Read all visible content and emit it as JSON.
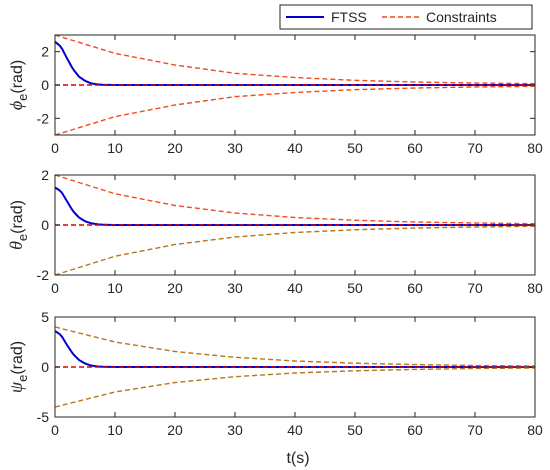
{
  "colors": {
    "ftss": "#0000cc",
    "constraints_red": "#f04c20",
    "constraints_brown": "#b5761e",
    "reference": "#e00000",
    "axes": "#262626"
  },
  "legend": {
    "placement": "top-right",
    "entries": [
      "FTSS",
      "Constraints"
    ]
  },
  "xlabel": "t(s)",
  "chart_data": [
    {
      "type": "line",
      "ylabel_symbol": "ϕ",
      "ylabel_subscript": "e",
      "ylabel_unit": "(rad)",
      "xlim": [
        0,
        80
      ],
      "ylim": [
        -3,
        3
      ],
      "xticks": [
        0,
        10,
        20,
        30,
        40,
        50,
        60,
        70,
        80
      ],
      "yticks": [
        -2,
        0,
        2
      ],
      "series": [
        {
          "name": "FTSS",
          "style": "solid",
          "color": "#0000cc",
          "x": [
            0,
            1,
            2,
            3,
            4,
            5,
            6,
            7,
            8,
            10,
            15,
            80
          ],
          "y": [
            2.6,
            2.3,
            1.6,
            0.95,
            0.5,
            0.25,
            0.1,
            0.04,
            0.01,
            0,
            0,
            0
          ]
        },
        {
          "name": "Constraints",
          "style": "dashed",
          "color": "#f04c20",
          "x": [
            0,
            10,
            20,
            30,
            40,
            50,
            60,
            70,
            80
          ],
          "y": [
            3.0,
            1.9,
            1.2,
            0.7,
            0.45,
            0.28,
            0.18,
            0.12,
            0.08
          ]
        },
        {
          "name": "Constraints",
          "style": "dashed",
          "color": "#f04c20",
          "x": [
            0,
            10,
            20,
            30,
            40,
            50,
            60,
            70,
            80
          ],
          "y": [
            -3.0,
            -1.9,
            -1.2,
            -0.7,
            -0.45,
            -0.28,
            -0.18,
            -0.12,
            -0.08
          ]
        },
        {
          "style": "dashed",
          "color": "#e00000",
          "x": [
            0,
            80
          ],
          "y": [
            0,
            0
          ]
        }
      ]
    },
    {
      "type": "line",
      "ylabel_symbol": "θ",
      "ylabel_subscript": "e",
      "ylabel_unit": "(rad)",
      "xlim": [
        0,
        80
      ],
      "ylim": [
        -2,
        2
      ],
      "xticks": [
        0,
        10,
        20,
        30,
        40,
        50,
        60,
        70,
        80
      ],
      "yticks": [
        -2,
        0,
        2
      ],
      "series": [
        {
          "name": "FTSS",
          "style": "solid",
          "color": "#0000cc",
          "x": [
            0,
            1,
            2,
            3,
            4,
            5,
            6,
            7,
            8,
            10,
            15,
            80
          ],
          "y": [
            1.5,
            1.35,
            0.95,
            0.55,
            0.3,
            0.15,
            0.07,
            0.03,
            0.01,
            0,
            0,
            0
          ]
        },
        {
          "name": "Constraints",
          "style": "dashed",
          "color": "#f04c20",
          "x": [
            0,
            10,
            20,
            30,
            40,
            50,
            60,
            70,
            80
          ],
          "y": [
            2.0,
            1.25,
            0.78,
            0.48,
            0.3,
            0.19,
            0.12,
            0.08,
            0.05
          ]
        },
        {
          "name": "Constraints",
          "style": "dashed",
          "color": "#b5761e",
          "x": [
            0,
            10,
            20,
            30,
            40,
            50,
            60,
            70,
            80
          ],
          "y": [
            -2.0,
            -1.25,
            -0.78,
            -0.48,
            -0.3,
            -0.19,
            -0.12,
            -0.08,
            -0.05
          ]
        },
        {
          "style": "dashed",
          "color": "#e00000",
          "x": [
            0,
            80
          ],
          "y": [
            0,
            0
          ]
        }
      ]
    },
    {
      "type": "line",
      "ylabel_symbol": "ψ",
      "ylabel_subscript": "e",
      "ylabel_unit": "(rad)",
      "xlim": [
        0,
        80
      ],
      "ylim": [
        -5,
        5
      ],
      "xticks": [
        0,
        10,
        20,
        30,
        40,
        50,
        60,
        70,
        80
      ],
      "yticks": [
        -5,
        0,
        5
      ],
      "series": [
        {
          "name": "FTSS",
          "style": "solid",
          "color": "#0000cc",
          "x": [
            0,
            1,
            2,
            3,
            4,
            5,
            6,
            7,
            8,
            10,
            15,
            80
          ],
          "y": [
            3.6,
            3.2,
            2.2,
            1.3,
            0.7,
            0.35,
            0.15,
            0.06,
            0.02,
            0,
            0,
            0
          ]
        },
        {
          "name": "Constraints",
          "style": "dashed",
          "color": "#b5761e",
          "x": [
            0,
            10,
            20,
            30,
            40,
            50,
            60,
            70,
            80
          ],
          "y": [
            4.0,
            2.5,
            1.55,
            0.97,
            0.6,
            0.38,
            0.24,
            0.15,
            0.1
          ]
        },
        {
          "name": "Constraints",
          "style": "dashed",
          "color": "#b5761e",
          "x": [
            0,
            10,
            20,
            30,
            40,
            50,
            60,
            70,
            80
          ],
          "y": [
            -4.0,
            -2.5,
            -1.55,
            -0.97,
            -0.6,
            -0.38,
            -0.24,
            -0.15,
            -0.1
          ]
        },
        {
          "style": "dashed",
          "color": "#e00000",
          "x": [
            0,
            80
          ],
          "y": [
            0,
            0
          ]
        }
      ]
    }
  ]
}
